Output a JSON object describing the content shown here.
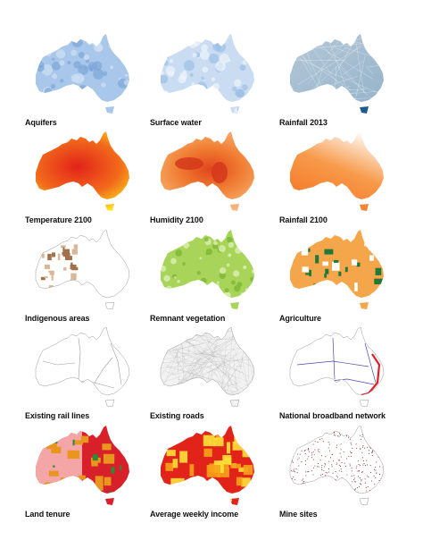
{
  "panels": [
    {
      "id": "aquifers",
      "caption": "Aquifers",
      "style": "aquifers",
      "colors": [
        "#a9c7ea",
        "#7ea7d8",
        "#cfe0f3"
      ]
    },
    {
      "id": "surface-water",
      "caption": "Surface water",
      "style": "surface",
      "colors": [
        "#c9dcf1",
        "#9dbfe6",
        "#eef4fb"
      ]
    },
    {
      "id": "rainfall-2013",
      "caption": "Rainfall 2013",
      "style": "rain2013",
      "colors": [
        "#b7c9d8",
        "#8fb0c8",
        "#1f5c8c"
      ]
    },
    {
      "id": "temperature-2100",
      "caption": "Temperature 2100",
      "style": "temp",
      "colors": [
        "#e2231a",
        "#f26a1b",
        "#f9c51a",
        "#fff23a"
      ]
    },
    {
      "id": "humidity-2100",
      "caption": "Humidity 2100",
      "style": "humid",
      "colors": [
        "#f9c9a0",
        "#f5a05a",
        "#f07a30",
        "#e0461c"
      ]
    },
    {
      "id": "rainfall-2100",
      "caption": "Rainfall 2100",
      "style": "rain2100",
      "colors": [
        "#f36a1a",
        "#f79a4a",
        "#fde0c8",
        "#ffffff"
      ]
    },
    {
      "id": "indigenous-areas",
      "caption": "Indigenous areas",
      "style": "indig",
      "colors": [
        "#ffffff",
        "#a0714a",
        "#d9b89a"
      ]
    },
    {
      "id": "remnant-vegetation",
      "caption": "Remnant vegetation",
      "style": "veg",
      "colors": [
        "#a8d45a",
        "#7cb836",
        "#dcefb4"
      ]
    },
    {
      "id": "agriculture",
      "caption": "Agriculture",
      "style": "agri",
      "colors": [
        "#f5a54a",
        "#1f7a3a",
        "#ffffff"
      ]
    },
    {
      "id": "existing-rail-lines",
      "caption": "Existing rail lines",
      "style": "rail",
      "colors": [
        "#ffffff",
        "#9a9a9a"
      ]
    },
    {
      "id": "existing-roads",
      "caption": "Existing roads",
      "style": "roads",
      "colors": [
        "#f2f2f2",
        "#8a8a8a"
      ]
    },
    {
      "id": "national-broadband-network",
      "caption": "National broadband network",
      "style": "nbn",
      "colors": [
        "#ffffff",
        "#4a4aa8",
        "#d8202a"
      ]
    },
    {
      "id": "land-tenure",
      "caption": "Land tenure",
      "style": "tenure",
      "colors": [
        "#d8202a",
        "#f4a6a6",
        "#e8961e",
        "#2a8a3a"
      ]
    },
    {
      "id": "average-weekly-income",
      "caption": "Average weekly income",
      "style": "income",
      "colors": [
        "#e2231a",
        "#f7a21a",
        "#fde23a"
      ]
    },
    {
      "id": "mine-sites",
      "caption": "Mine sites",
      "style": "mines",
      "colors": [
        "#ffffff",
        "#7a1f1f"
      ]
    }
  ]
}
